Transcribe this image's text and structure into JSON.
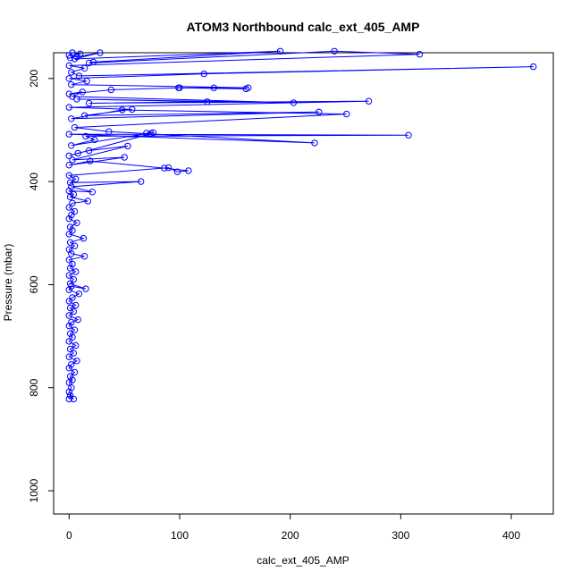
{
  "chart_data": {
    "type": "scatter",
    "title": "ATOM3 Northbound calc_ext_405_AMP",
    "xlabel": "calc_ext_405_AMP",
    "ylabel": "Pressure (mbar)",
    "xlim": [
      -14,
      438
    ],
    "ylim": [
      1045,
      150
    ],
    "y_reversed": true,
    "x_ticks": [
      0,
      100,
      200,
      300,
      400
    ],
    "y_ticks": [
      200,
      400,
      600,
      800,
      1000
    ],
    "grid": false,
    "legend": "none",
    "series": [
      {
        "color": "#0000ff",
        "marker": "open-circle",
        "line": true,
        "points": [
          [
            0,
            822
          ],
          [
            1,
            815
          ],
          [
            4,
            822
          ],
          [
            0,
            808
          ],
          [
            2,
            800
          ],
          [
            0,
            790
          ],
          [
            3,
            785
          ],
          [
            1,
            778
          ],
          [
            5,
            770
          ],
          [
            0,
            762
          ],
          [
            2,
            755
          ],
          [
            7,
            748
          ],
          [
            0,
            740
          ],
          [
            4,
            733
          ],
          [
            1,
            725
          ],
          [
            6,
            718
          ],
          [
            0,
            710
          ],
          [
            3,
            702
          ],
          [
            1,
            695
          ],
          [
            5,
            688
          ],
          [
            0,
            680
          ],
          [
            2,
            673
          ],
          [
            8,
            668
          ],
          [
            0,
            660
          ],
          [
            4,
            652
          ],
          [
            1,
            645
          ],
          [
            6,
            640
          ],
          [
            0,
            632
          ],
          [
            3,
            625
          ],
          [
            9,
            618
          ],
          [
            0,
            610
          ],
          [
            2,
            603
          ],
          [
            15,
            608
          ],
          [
            1,
            598
          ],
          [
            4,
            590
          ],
          [
            0,
            582
          ],
          [
            6,
            575
          ],
          [
            1,
            568
          ],
          [
            3,
            560
          ],
          [
            0,
            552
          ],
          [
            14,
            545
          ],
          [
            2,
            540
          ],
          [
            0,
            532
          ],
          [
            5,
            525
          ],
          [
            1,
            518
          ],
          [
            13,
            510
          ],
          [
            0,
            502
          ],
          [
            3,
            495
          ],
          [
            1,
            488
          ],
          [
            7,
            480
          ],
          [
            0,
            472
          ],
          [
            2,
            465
          ],
          [
            5,
            458
          ],
          [
            0,
            450
          ],
          [
            3,
            442
          ],
          [
            17,
            438
          ],
          [
            1,
            430
          ],
          [
            4,
            425
          ],
          [
            0,
            418
          ],
          [
            21,
            420
          ],
          [
            2,
            410
          ],
          [
            65,
            400
          ],
          [
            1,
            402
          ],
          [
            6,
            395
          ],
          [
            0,
            388
          ],
          [
            90,
            373
          ],
          [
            98,
            381
          ],
          [
            108,
            379
          ],
          [
            86,
            374
          ],
          [
            19,
            360
          ],
          [
            0,
            368
          ],
          [
            50,
            353
          ],
          [
            3,
            358
          ],
          [
            53,
            331
          ],
          [
            18,
            340
          ],
          [
            8,
            345
          ],
          [
            0,
            350
          ],
          [
            74,
            307
          ],
          [
            70,
            306
          ],
          [
            76,
            305
          ],
          [
            2,
            330
          ],
          [
            23,
            319
          ],
          [
            15,
            312
          ],
          [
            307,
            310
          ],
          [
            0,
            308
          ],
          [
            222,
            325
          ],
          [
            36,
            303
          ],
          [
            5,
            295
          ],
          [
            251,
            269
          ],
          [
            48,
            261
          ],
          [
            2,
            278
          ],
          [
            226,
            265
          ],
          [
            14,
            272
          ],
          [
            57,
            260
          ],
          [
            0,
            256
          ],
          [
            271,
            244
          ],
          [
            18,
            248
          ],
          [
            125,
            245
          ],
          [
            7,
            240
          ],
          [
            203,
            247
          ],
          [
            3,
            235
          ],
          [
            12,
            226
          ],
          [
            0,
            230
          ],
          [
            38,
            222
          ],
          [
            100,
            218
          ],
          [
            160,
            220
          ],
          [
            99,
            218
          ],
          [
            131,
            218
          ],
          [
            162,
            218
          ],
          [
            2,
            212
          ],
          [
            16,
            205
          ],
          [
            0,
            200
          ],
          [
            122,
            191
          ],
          [
            420,
            177
          ],
          [
            9,
            195
          ],
          [
            2,
            188
          ],
          [
            14,
            180
          ],
          [
            0,
            175
          ],
          [
            317,
            153
          ],
          [
            240,
            147
          ],
          [
            18,
            170
          ],
          [
            22,
            168
          ],
          [
            191,
            147
          ],
          [
            5,
            162
          ],
          [
            28,
            150
          ],
          [
            7,
            158
          ],
          [
            0,
            155
          ],
          [
            3,
            150
          ],
          [
            10,
            152
          ],
          [
            1,
            160
          ]
        ]
      }
    ]
  }
}
